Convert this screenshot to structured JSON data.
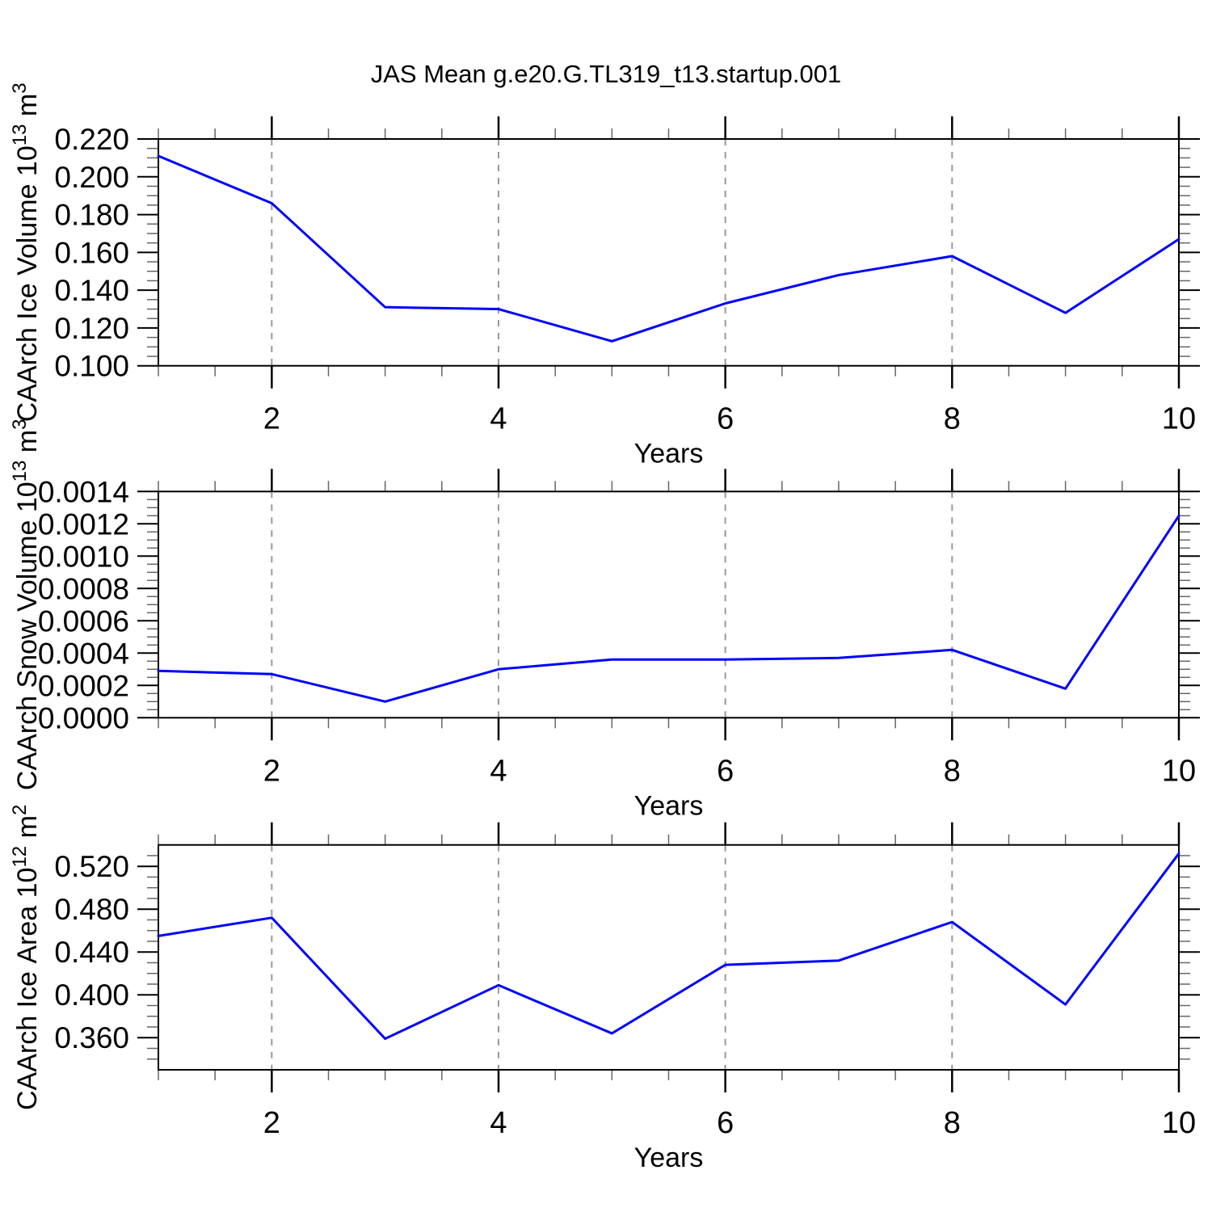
{
  "title": "JAS Mean g.e20.G.TL319_t13.startup.001",
  "style": {
    "line_color": "#0000ff",
    "axis_color": "#000000",
    "major_tick_color": "#000000",
    "minor_tick_color": "#666666",
    "grid_color": "#999999",
    "background": "#ffffff"
  },
  "chart_data": [
    {
      "type": "line",
      "id": "ice-volume",
      "ylabel_plain": "CAArch Ice Volume 10^13 m^3",
      "ylabel_parts": {
        "prefix": "CAArch Ice Volume 10",
        "sup1": "13",
        "mid": " m",
        "sup2": "3"
      },
      "xlabel": "Years",
      "x": [
        1,
        2,
        3,
        4,
        5,
        6,
        7,
        8,
        9,
        10
      ],
      "values": [
        0.211,
        0.186,
        0.131,
        0.13,
        0.113,
        0.133,
        0.148,
        0.158,
        0.128,
        0.167
      ],
      "xlim": [
        1,
        10
      ],
      "ylim": [
        0.1,
        0.22
      ],
      "yticks": [
        0.1,
        0.12,
        0.14,
        0.16,
        0.18,
        0.2,
        0.22
      ],
      "ytick_labels": [
        "0.100",
        "0.120",
        "0.140",
        "0.160",
        "0.180",
        "0.200",
        "0.220"
      ],
      "y_minor_step": 0.005,
      "xticks": [
        2,
        4,
        6,
        8,
        10
      ],
      "xtick_labels": [
        "2",
        "4",
        "6",
        "8",
        "10"
      ],
      "x_minor_step": 0.5,
      "grid_x": [
        2,
        4,
        6,
        8
      ],
      "grid": "vertical-dashed",
      "legend": "none"
    },
    {
      "type": "line",
      "id": "snow-volume",
      "ylabel_plain": "CAArch Snow Volume 10^13 m^3",
      "ylabel_parts": {
        "prefix": "CAArch Snow Volume 10",
        "sup1": "13",
        "mid": " m",
        "sup2": "3"
      },
      "xlabel": "Years",
      "x": [
        1,
        2,
        3,
        4,
        5,
        6,
        7,
        8,
        9,
        10
      ],
      "values": [
        0.00029,
        0.00027,
        0.0001,
        0.0003,
        0.00036,
        0.00036,
        0.00037,
        0.00042,
        0.00018,
        0.00125
      ],
      "xlim": [
        1,
        10
      ],
      "ylim": [
        0.0,
        0.0014
      ],
      "yticks": [
        0.0,
        0.0002,
        0.0004,
        0.0006,
        0.0008,
        0.001,
        0.0012,
        0.0014
      ],
      "ytick_labels": [
        "0.0000",
        "0.0002",
        "0.0004",
        "0.0006",
        "0.0008",
        "0.0010",
        "0.0012",
        "0.0014"
      ],
      "y_minor_step": 5e-05,
      "xticks": [
        2,
        4,
        6,
        8,
        10
      ],
      "xtick_labels": [
        "2",
        "4",
        "6",
        "8",
        "10"
      ],
      "x_minor_step": 0.5,
      "grid_x": [
        2,
        4,
        6,
        8
      ],
      "grid": "vertical-dashed",
      "legend": "none"
    },
    {
      "type": "line",
      "id": "ice-area",
      "ylabel_plain": "CAArch Ice Area 10^12 m^2",
      "ylabel_parts": {
        "prefix": "CAArch Ice Area 10",
        "sup1": "12",
        "mid": " m",
        "sup2": "2"
      },
      "xlabel": "Years",
      "x": [
        1,
        2,
        3,
        4,
        5,
        6,
        7,
        8,
        9,
        10
      ],
      "values": [
        0.455,
        0.472,
        0.359,
        0.409,
        0.364,
        0.428,
        0.432,
        0.468,
        0.391,
        0.532
      ],
      "xlim": [
        1,
        10
      ],
      "ylim": [
        0.33,
        0.54
      ],
      "yticks": [
        0.36,
        0.4,
        0.44,
        0.48,
        0.52
      ],
      "ytick_labels": [
        "0.360",
        "0.400",
        "0.440",
        "0.480",
        "0.520"
      ],
      "y_minor_step": 0.01,
      "xticks": [
        2,
        4,
        6,
        8,
        10
      ],
      "xtick_labels": [
        "2",
        "4",
        "6",
        "8",
        "10"
      ],
      "x_minor_step": 0.5,
      "grid_x": [
        2,
        4,
        6,
        8
      ],
      "grid": "vertical-dashed",
      "legend": "none"
    }
  ]
}
